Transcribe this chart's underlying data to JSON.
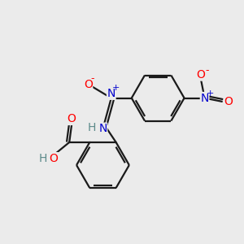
{
  "bg_color": "#ebebeb",
  "bond_color": "#1a1a1a",
  "atom_colors": {
    "O": "#ff0000",
    "N": "#0000cc",
    "H": "#5c8a8a",
    "C": "#1a1a1a"
  }
}
